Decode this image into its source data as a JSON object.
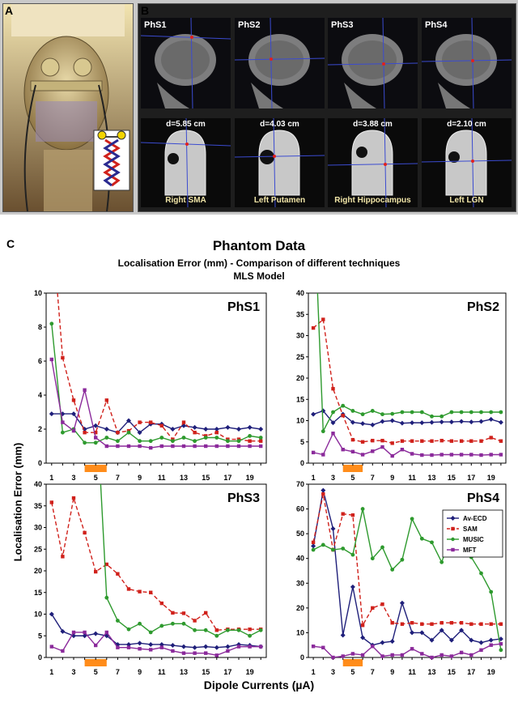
{
  "panel_a": {
    "letter": "A"
  },
  "panel_b": {
    "letter": "B",
    "scans": [
      {
        "label": "PhS1",
        "distance": "d=5.85 cm",
        "region": "Right SMA"
      },
      {
        "label": "PhS2",
        "distance": "d=4.03 cm",
        "region": "Left Putamen"
      },
      {
        "label": "PhS3",
        "distance": "d=3.88 cm",
        "region": "Right Hippocampus"
      },
      {
        "label": "PhS4",
        "distance": "d=2.10 cm",
        "region": "Left LGN"
      }
    ]
  },
  "panel_c": {
    "letter": "C",
    "title": "Phantom Data",
    "subtitle1": "Localisation Error (mm) - Comparison of different techniques",
    "subtitle2": "MLS Model",
    "ylabel": "Localisation Error (mm)",
    "xlabel": "Dipole Currents (µA)"
  },
  "colors": {
    "Av-ECD": "#1f1f7a",
    "SAM": "#d0211b",
    "MUSIC": "#2e9a2e",
    "MFT": "#8b2a9b",
    "highlight": "#ff8c1a"
  },
  "chart_data": [
    {
      "type": "line",
      "title": "PhS1",
      "x": [
        1,
        2,
        3,
        4,
        5,
        6,
        7,
        8,
        9,
        10,
        11,
        12,
        13,
        14,
        15,
        16,
        17,
        18,
        19,
        20
      ],
      "ylim": [
        0,
        10
      ],
      "yticks": [
        0,
        2,
        4,
        6,
        8,
        10
      ],
      "xticks": [
        1,
        3,
        5,
        7,
        9,
        11,
        13,
        15,
        17,
        19
      ],
      "highlight_x": [
        4,
        6
      ],
      "grid": false,
      "series": [
        {
          "name": "Av-ECD",
          "values": [
            2.9,
            2.9,
            2.9,
            2.0,
            2.2,
            2.0,
            1.8,
            2.5,
            1.8,
            2.3,
            2.3,
            2.0,
            2.2,
            2.1,
            2.0,
            2.0,
            2.1,
            2.0,
            2.1,
            2.0
          ]
        },
        {
          "name": "SAM",
          "values": [
            null,
            6.2,
            3.7,
            1.8,
            1.8,
            3.7,
            1.8,
            1.9,
            2.4,
            2.4,
            2.2,
            1.4,
            2.4,
            1.8,
            1.6,
            1.8,
            1.4,
            1.4,
            1.3,
            1.3
          ]
        },
        {
          "name": "MUSIC",
          "values": [
            8.2,
            1.8,
            2.0,
            1.2,
            1.2,
            1.5,
            1.3,
            1.8,
            1.3,
            1.3,
            1.5,
            1.3,
            1.5,
            1.3,
            1.5,
            1.5,
            1.3,
            1.3,
            1.6,
            1.5
          ]
        },
        {
          "name": "MFT",
          "values": [
            6.1,
            2.4,
            1.9,
            4.3,
            1.5,
            1.0,
            1.0,
            1.0,
            1.0,
            0.9,
            1.0,
            1.0,
            1.0,
            1.0,
            1.0,
            1.0,
            1.0,
            1.0,
            1.0,
            1.0
          ]
        }
      ]
    },
    {
      "type": "line",
      "title": "PhS2",
      "x": [
        1,
        2,
        3,
        4,
        5,
        6,
        7,
        8,
        9,
        10,
        11,
        12,
        13,
        14,
        15,
        16,
        17,
        18,
        19,
        20
      ],
      "ylim": [
        0,
        40
      ],
      "yticks": [
        0,
        5,
        10,
        15,
        20,
        25,
        30,
        35,
        40
      ],
      "xticks": [
        1,
        3,
        5,
        7,
        9,
        11,
        13,
        15,
        17,
        19
      ],
      "highlight_x": [
        4,
        6
      ],
      "grid": false,
      "series": [
        {
          "name": "Av-ECD",
          "values": [
            11.5,
            12.3,
            9.5,
            11.5,
            9.6,
            9.3,
            9.0,
            9.8,
            10.0,
            9.4,
            9.5,
            9.5,
            9.6,
            9.7,
            9.7,
            9.8,
            9.7,
            9.8,
            10.3,
            9.6
          ]
        },
        {
          "name": "SAM",
          "values": [
            31.8,
            33.8,
            17.5,
            11.2,
            5.5,
            5.0,
            5.3,
            5.3,
            4.7,
            5.2,
            5.2,
            5.2,
            5.2,
            5.3,
            5.2,
            5.2,
            5.2,
            5.2,
            6.0,
            5.2
          ]
        },
        {
          "name": "MUSIC",
          "values": [
            null,
            7.5,
            12.0,
            13.5,
            12.3,
            11.5,
            12.3,
            11.5,
            11.6,
            12.0,
            12.0,
            12.0,
            11.0,
            11.0,
            12.0,
            12.0,
            12.0,
            12.0,
            12.0,
            12.0
          ]
        },
        {
          "name": "MFT",
          "values": [
            2.5,
            2.0,
            7.0,
            3.2,
            2.7,
            2.0,
            2.8,
            3.8,
            1.7,
            3.2,
            2.2,
            1.9,
            1.9,
            2.0,
            2.0,
            2.0,
            2.0,
            1.9,
            2.0,
            2.0
          ]
        }
      ]
    },
    {
      "type": "line",
      "title": "PhS3",
      "x": [
        1,
        2,
        3,
        4,
        5,
        6,
        7,
        8,
        9,
        10,
        11,
        12,
        13,
        14,
        15,
        16,
        17,
        18,
        19,
        20
      ],
      "ylim": [
        0,
        40
      ],
      "yticks": [
        0,
        5,
        10,
        15,
        20,
        25,
        30,
        35,
        40
      ],
      "xticks": [
        1,
        3,
        5,
        7,
        9,
        11,
        13,
        15,
        17,
        19
      ],
      "highlight_x": [
        4,
        6
      ],
      "grid": false,
      "series": [
        {
          "name": "Av-ECD",
          "values": [
            10.0,
            6.0,
            5.0,
            5.0,
            5.5,
            5.0,
            3.0,
            3.0,
            3.3,
            3.0,
            3.0,
            2.8,
            2.5,
            2.3,
            2.5,
            2.3,
            2.5,
            3.0,
            2.8,
            2.5
          ]
        },
        {
          "name": "SAM",
          "values": [
            35.8,
            23.3,
            36.8,
            28.8,
            19.8,
            21.5,
            19.3,
            15.8,
            15.2,
            15.0,
            12.5,
            10.3,
            10.2,
            8.5,
            10.3,
            6.3,
            6.5,
            6.5,
            6.5,
            6.5
          ]
        },
        {
          "name": "MUSIC",
          "values": [
            null,
            null,
            null,
            null,
            null,
            13.8,
            8.5,
            6.5,
            7.8,
            5.8,
            7.3,
            7.8,
            7.8,
            6.3,
            6.3,
            5.0,
            6.3,
            6.3,
            5.0,
            6.3
          ]
        },
        {
          "name": "MFT",
          "values": [
            2.5,
            1.5,
            5.8,
            5.8,
            2.8,
            5.8,
            2.3,
            2.3,
            2.0,
            1.8,
            2.3,
            1.5,
            1.0,
            1.0,
            1.0,
            0.5,
            1.5,
            2.5,
            2.5,
            2.5
          ]
        }
      ]
    },
    {
      "type": "line",
      "title": "PhS4",
      "x": [
        1,
        2,
        3,
        4,
        5,
        6,
        7,
        8,
        9,
        10,
        11,
        12,
        13,
        14,
        15,
        16,
        17,
        18,
        19,
        20
      ],
      "ylim": [
        0,
        70
      ],
      "yticks": [
        0,
        10,
        20,
        30,
        40,
        50,
        60,
        70
      ],
      "xticks": [
        1,
        3,
        5,
        7,
        9,
        11,
        13,
        15,
        17,
        19
      ],
      "highlight_x": [
        4,
        6
      ],
      "legend": "top-right",
      "grid": false,
      "series": [
        {
          "name": "Av-ECD",
          "values": [
            45.0,
            67.5,
            52.0,
            9.0,
            28.5,
            8.0,
            5.0,
            6.0,
            6.5,
            22.0,
            10.0,
            10.0,
            7.0,
            11.0,
            7.0,
            11.0,
            7.0,
            6.0,
            7.0,
            7.5
          ]
        },
        {
          "name": "SAM",
          "values": [
            46.5,
            66.0,
            43.5,
            58.0,
            57.5,
            13.0,
            20.0,
            21.5,
            14.0,
            13.5,
            14.0,
            13.5,
            13.5,
            14.0,
            14.0,
            14.0,
            13.5,
            13.5,
            13.5,
            13.5
          ]
        },
        {
          "name": "MUSIC",
          "values": [
            43.5,
            45.5,
            43.5,
            44.0,
            41.5,
            60.0,
            40.0,
            44.5,
            35.5,
            39.5,
            56.0,
            48.0,
            46.5,
            38.5,
            50.0,
            41.5,
            40.5,
            34.0,
            26.5,
            3.0
          ]
        },
        {
          "name": "MFT",
          "values": [
            4.5,
            4.0,
            0.0,
            0.5,
            1.5,
            1.0,
            4.5,
            0.5,
            1.0,
            1.0,
            3.5,
            1.5,
            0.0,
            1.0,
            0.5,
            2.0,
            1.0,
            3.0,
            5.0,
            5.5
          ]
        }
      ]
    }
  ]
}
